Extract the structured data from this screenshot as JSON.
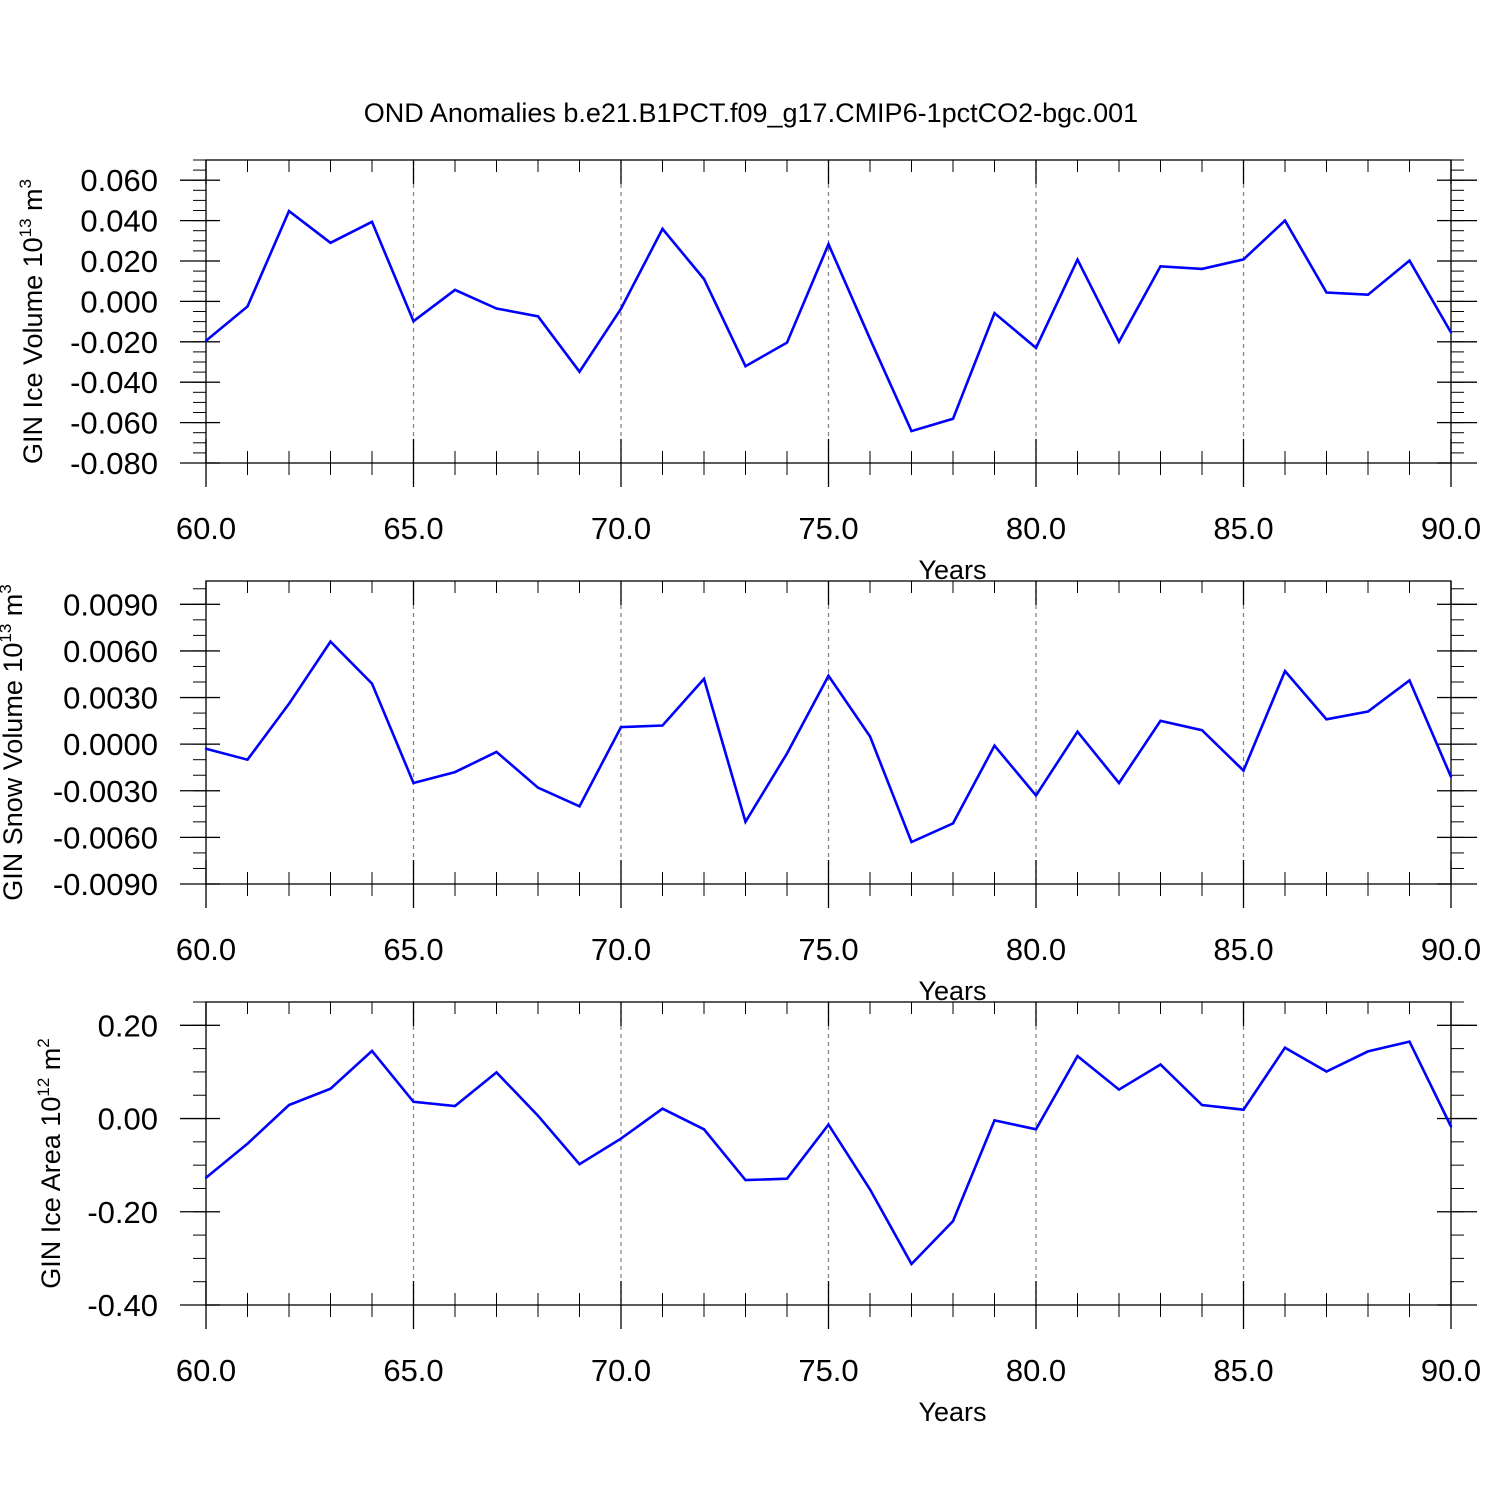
{
  "figure": {
    "title": "OND Anomalies b.e21.B1PCT.f09_g17.CMIP6-1pctCO2-bgc.001",
    "line_color": "#0000ff",
    "grid_color": "#808080"
  },
  "chart_data": [
    {
      "type": "line",
      "ylabel_main": "GIN Ice Volume 10",
      "ylabel_exp": "13",
      "ylabel_unit": " m",
      "ylabel_unit_exp": "3",
      "xlabel": "Years",
      "xlim": [
        60,
        90
      ],
      "ylim": [
        -0.08,
        0.07
      ],
      "x_ticks": [
        60,
        65,
        70,
        75,
        80,
        85,
        90
      ],
      "x_tick_labels": [
        "60.0",
        "65.0",
        "70.0",
        "75.0",
        "80.0",
        "85.0",
        "90.0"
      ],
      "y_ticks": [
        -0.08,
        -0.06,
        -0.04,
        -0.02,
        0.0,
        0.02,
        0.04,
        0.06
      ],
      "y_tick_labels": [
        "-0.080",
        "-0.060",
        "-0.040",
        "-0.020",
        "0.000",
        "0.020",
        "0.040",
        "0.060"
      ],
      "y_minor_step": 0.005,
      "grid": "vertical-dashed",
      "x": [
        60,
        61,
        62,
        63,
        64,
        65,
        66,
        67,
        68,
        69,
        70,
        71,
        72,
        73,
        74,
        75,
        76,
        77,
        78,
        79,
        80,
        81,
        82,
        83,
        84,
        85,
        86,
        87,
        88,
        89,
        90
      ],
      "values": [
        -0.0195,
        -0.0025,
        0.0447,
        0.029,
        0.0394,
        -0.0098,
        0.0057,
        -0.0035,
        -0.0074,
        -0.0348,
        -0.0036,
        0.0359,
        0.0111,
        -0.0321,
        -0.0204,
        0.0283,
        -0.0185,
        -0.0642,
        -0.0581,
        -0.0058,
        -0.023,
        0.0207,
        -0.02,
        0.0174,
        0.0161,
        0.0208,
        0.04,
        0.0044,
        0.0033,
        0.0202,
        -0.0154
      ]
    },
    {
      "type": "line",
      "ylabel_main": "GIN Snow Volume 10",
      "ylabel_exp": "13",
      "ylabel_unit": " m",
      "ylabel_unit_exp": "3",
      "xlabel": "Years",
      "xlim": [
        60,
        90
      ],
      "ylim": [
        -0.009,
        0.0105
      ],
      "x_ticks": [
        60,
        65,
        70,
        75,
        80,
        85,
        90
      ],
      "x_tick_labels": [
        "60.0",
        "65.0",
        "70.0",
        "75.0",
        "80.0",
        "85.0",
        "90.0"
      ],
      "y_ticks": [
        -0.009,
        -0.006,
        -0.003,
        0.0,
        0.003,
        0.006,
        0.009
      ],
      "y_tick_labels": [
        "-0.0090",
        "-0.0060",
        "-0.0030",
        "0.0000",
        "0.0030",
        "0.0060",
        "0.0090"
      ],
      "y_minor_step": 0.001,
      "grid": "vertical-dashed",
      "x": [
        60,
        61,
        62,
        63,
        64,
        65,
        66,
        67,
        68,
        69,
        70,
        71,
        72,
        73,
        74,
        75,
        76,
        77,
        78,
        79,
        80,
        81,
        82,
        83,
        84,
        85,
        86,
        87,
        88,
        89,
        90
      ],
      "values": [
        -0.0003,
        -0.001,
        0.0026,
        0.0066,
        0.0039,
        -0.0025,
        -0.0018,
        -0.0005,
        -0.0028,
        -0.004,
        0.0011,
        0.0012,
        0.0042,
        -0.005,
        -0.0006,
        0.0044,
        0.0005,
        -0.0063,
        -0.0051,
        -0.0001,
        -0.0033,
        0.0008,
        -0.0025,
        0.0015,
        0.0009,
        -0.0017,
        0.0047,
        0.0016,
        0.0021,
        0.0041,
        -0.0021
      ]
    },
    {
      "type": "line",
      "ylabel_main": "GIN Ice Area 10",
      "ylabel_exp": "12",
      "ylabel_unit": " m",
      "ylabel_unit_exp": "2",
      "xlabel": "Years",
      "xlim": [
        60,
        90
      ],
      "ylim": [
        -0.4,
        0.25
      ],
      "x_ticks": [
        60,
        65,
        70,
        75,
        80,
        85,
        90
      ],
      "x_tick_labels": [
        "60.0",
        "65.0",
        "70.0",
        "75.0",
        "80.0",
        "85.0",
        "90.0"
      ],
      "y_ticks": [
        -0.4,
        -0.2,
        0.0,
        0.2
      ],
      "y_tick_labels": [
        "-0.40",
        "-0.20",
        "0.00",
        "0.20"
      ],
      "y_minor_step": 0.05,
      "grid": "vertical-dashed",
      "x": [
        60,
        61,
        62,
        63,
        64,
        65,
        66,
        67,
        68,
        69,
        70,
        71,
        72,
        73,
        74,
        75,
        76,
        77,
        78,
        79,
        80,
        81,
        82,
        83,
        84,
        85,
        86,
        87,
        88,
        89,
        90
      ],
      "values": [
        -0.127,
        -0.054,
        0.029,
        0.064,
        0.145,
        0.036,
        0.027,
        0.099,
        0.006,
        -0.098,
        -0.043,
        0.021,
        -0.023,
        -0.132,
        -0.129,
        -0.013,
        -0.152,
        -0.312,
        -0.22,
        -0.004,
        -0.023,
        0.134,
        0.062,
        0.116,
        0.029,
        0.019,
        0.152,
        0.101,
        0.144,
        0.165,
        -0.017
      ]
    }
  ]
}
